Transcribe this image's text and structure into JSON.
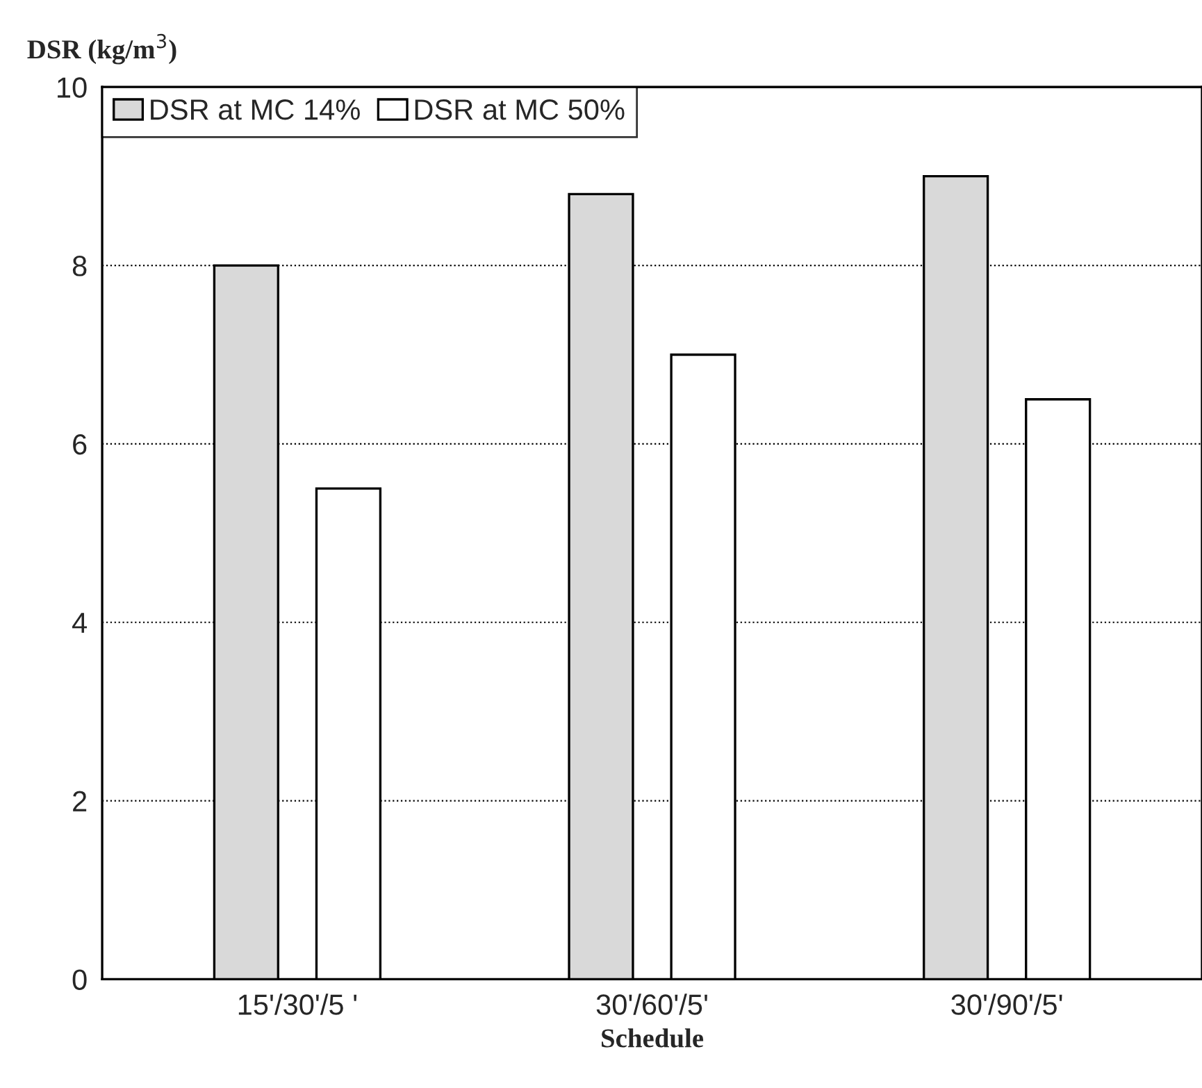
{
  "chart_data": {
    "type": "bar",
    "xlabel": "Schedule",
    "ylabel": "DSR (kg/m$^{3}$)",
    "categories": [
      "15'/30'/5 '",
      "30'/60'/5'",
      "30'/90'/5'"
    ],
    "series": [
      {
        "name": "DSR at MC 14%",
        "color": "#d9d9d9",
        "values": [
          8.0,
          8.8,
          9.0
        ]
      },
      {
        "name": "DSR at MC 50%",
        "color": "#ffffff",
        "values": [
          5.5,
          7.0,
          6.5
        ]
      }
    ],
    "ylim": [
      0,
      10
    ],
    "yticks": [
      0,
      2,
      4,
      6,
      8,
      10
    ],
    "grid": "y",
    "legend": "top left",
    "line_style": "dotted"
  }
}
